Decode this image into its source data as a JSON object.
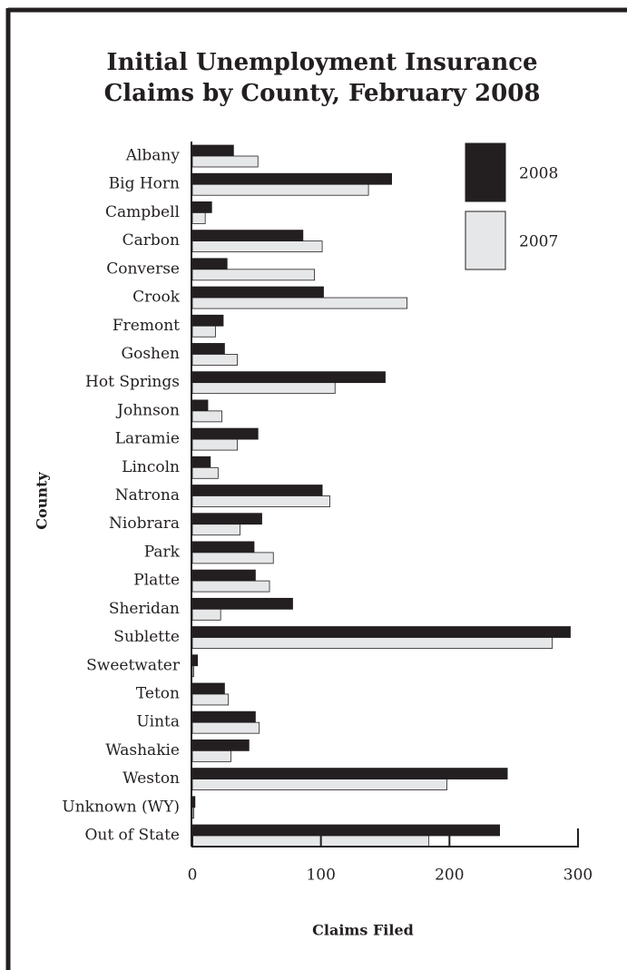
{
  "chart_data": {
    "type": "barh",
    "title": [
      "Initial Unemployment Insurance",
      "Claims by County, February 2008"
    ],
    "xlabel": "Claims Filed",
    "ylabel": "County",
    "categories": [
      "Albany",
      "Big Horn",
      "Campbell",
      "Carbon",
      "Converse",
      "Crook",
      "Fremont",
      "Goshen",
      "Hot Springs",
      "Johnson",
      "Laramie",
      "Lincoln",
      "Natrona",
      "Niobrara",
      "Park",
      "Platte",
      "Sheridan",
      "Sublette",
      "Sweetwater",
      "Teton",
      "Uinta",
      "Washakie",
      "Weston",
      "Unknown (WY)",
      "Out of State"
    ],
    "series": [
      {
        "name": "2008",
        "color": "#231f20",
        "values": [
          32,
          155,
          15,
          86,
          27,
          102,
          24,
          25,
          150,
          12,
          51,
          14,
          101,
          54,
          48,
          49,
          78,
          294,
          4,
          25,
          49,
          44,
          245,
          2,
          239
        ]
      },
      {
        "name": "2007",
        "color": "#e6e7e8",
        "values": [
          51,
          137,
          10,
          101,
          95,
          167,
          18,
          35,
          111,
          23,
          35,
          20,
          107,
          37,
          63,
          60,
          22,
          280,
          1,
          28,
          52,
          30,
          198,
          1,
          184
        ]
      }
    ],
    "xlim": [
      0,
      300
    ],
    "xticks": [
      0,
      100,
      200,
      300
    ],
    "legend": "upper right"
  }
}
